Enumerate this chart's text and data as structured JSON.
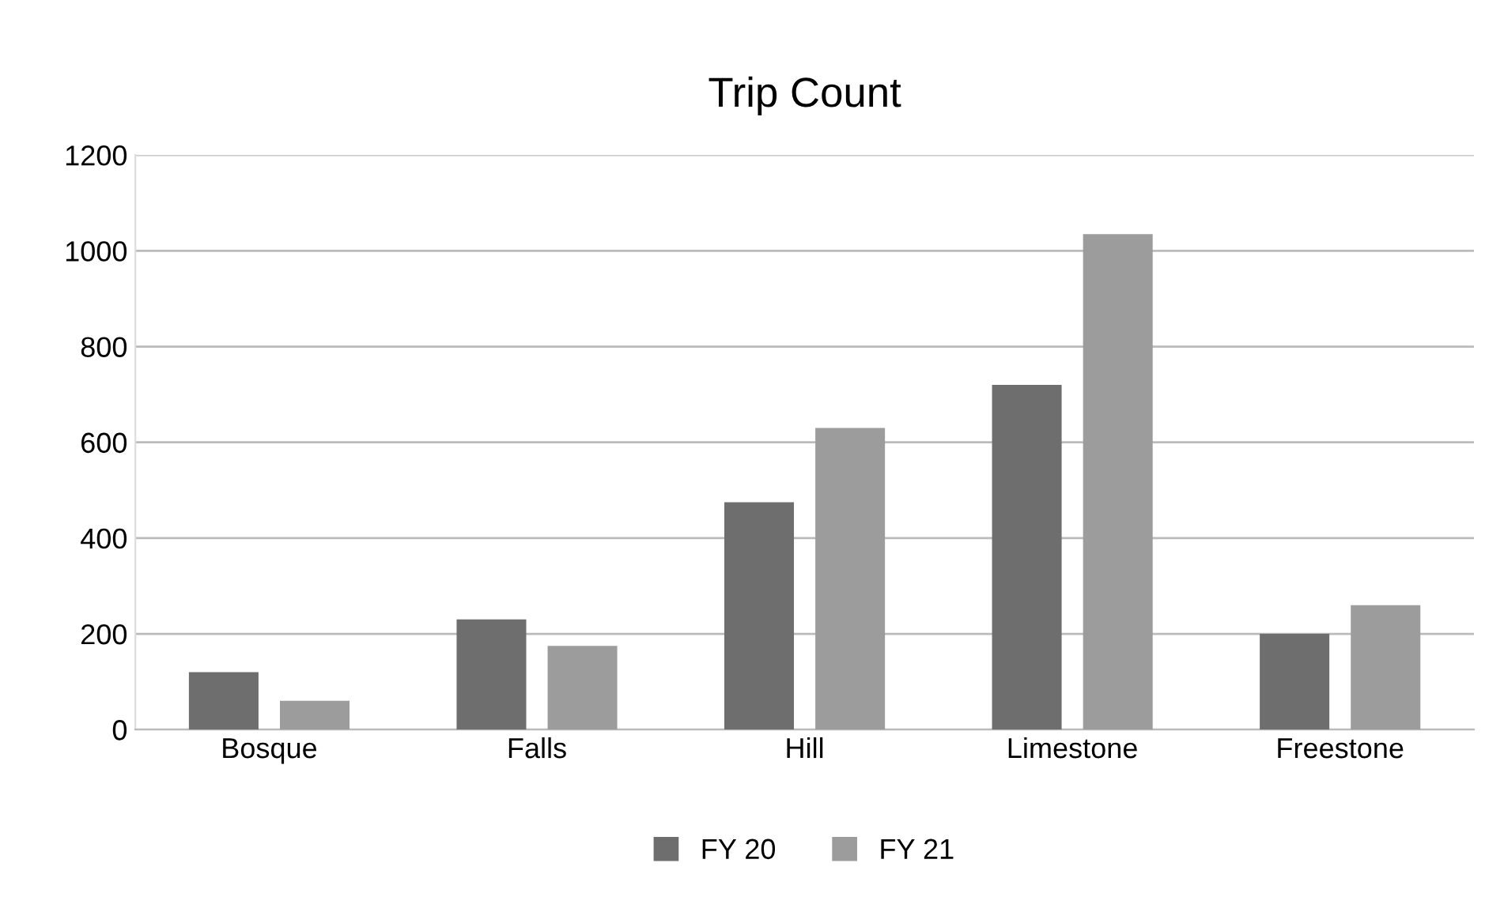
{
  "chart_data": {
    "type": "bar",
    "title": "Trip Count",
    "categories": [
      "Bosque",
      "Falls",
      "Hill",
      "Limestone",
      "Freestone"
    ],
    "series": [
      {
        "name": "FY 20",
        "color": "#6e6e6e",
        "values": [
          120,
          230,
          475,
          720,
          200
        ]
      },
      {
        "name": "FY 21",
        "color": "#9c9c9c",
        "values": [
          60,
          175,
          630,
          1035,
          260
        ]
      }
    ],
    "ylim": [
      0,
      1200
    ],
    "yticks": [
      0,
      200,
      400,
      600,
      800,
      1000,
      1200
    ],
    "grid": "y",
    "legend": "bottom"
  }
}
